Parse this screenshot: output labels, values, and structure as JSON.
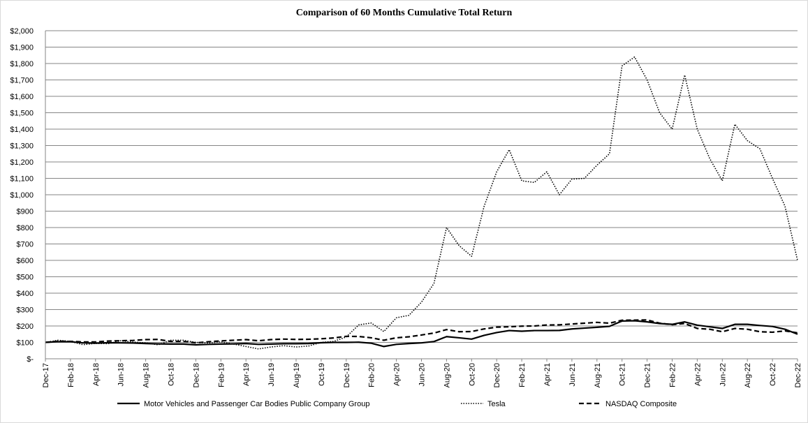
{
  "chart_data": {
    "type": "line",
    "title": "Comparison of 60 Months Cumulative Total Return",
    "xlabel": "",
    "ylabel": "",
    "ylim": [
      0,
      2000
    ],
    "y_ticks": [
      {
        "v": 0,
        "label": "$-"
      },
      {
        "v": 100,
        "label": "$100"
      },
      {
        "v": 200,
        "label": "$200"
      },
      {
        "v": 300,
        "label": "$300"
      },
      {
        "v": 400,
        "label": "$400"
      },
      {
        "v": 500,
        "label": "$500"
      },
      {
        "v": 600,
        "label": "$600"
      },
      {
        "v": 700,
        "label": "$700"
      },
      {
        "v": 800,
        "label": "$800"
      },
      {
        "v": 900,
        "label": "$900"
      },
      {
        "v": 1000,
        "label": "$1,000"
      },
      {
        "v": 1100,
        "label": "$1,100"
      },
      {
        "v": 1200,
        "label": "$1,200"
      },
      {
        "v": 1300,
        "label": "$1,300"
      },
      {
        "v": 1400,
        "label": "$1,400"
      },
      {
        "v": 1500,
        "label": "$1,500"
      },
      {
        "v": 1600,
        "label": "$1,600"
      },
      {
        "v": 1700,
        "label": "$1,700"
      },
      {
        "v": 1800,
        "label": "$1,800"
      },
      {
        "v": 1900,
        "label": "$1,900"
      },
      {
        "v": 2000,
        "label": "$2,000"
      }
    ],
    "x": [
      "Dec-17",
      "Jan-18",
      "Feb-18",
      "Mar-18",
      "Apr-18",
      "May-18",
      "Jun-18",
      "Jul-18",
      "Aug-18",
      "Sep-18",
      "Oct-18",
      "Nov-18",
      "Dec-18",
      "Jan-19",
      "Feb-19",
      "Mar-19",
      "Apr-19",
      "May-19",
      "Jun-19",
      "Jul-19",
      "Aug-19",
      "Sep-19",
      "Oct-19",
      "Nov-19",
      "Dec-19",
      "Jan-20",
      "Feb-20",
      "Mar-20",
      "Apr-20",
      "May-20",
      "Jun-20",
      "Jul-20",
      "Aug-20",
      "Sep-20",
      "Oct-20",
      "Nov-20",
      "Dec-20",
      "Jan-21",
      "Feb-21",
      "Mar-21",
      "Apr-21",
      "May-21",
      "Jun-21",
      "Jul-21",
      "Aug-21",
      "Sep-21",
      "Oct-21",
      "Nov-21",
      "Dec-21",
      "Jan-22",
      "Feb-22",
      "Mar-22",
      "Apr-22",
      "May-22",
      "Jun-22",
      "Jul-22",
      "Aug-22",
      "Sep-22",
      "Oct-22",
      "Nov-22",
      "Dec-22"
    ],
    "x_tick_labels": [
      "Dec-17",
      "Feb-18",
      "Apr-18",
      "Jun-18",
      "Aug-18",
      "Oct-18",
      "Dec-18",
      "Feb-19",
      "Apr-19",
      "Jun-19",
      "Aug-19",
      "Oct-19",
      "Dec-19",
      "Feb-20",
      "Apr-20",
      "Jun-20",
      "Aug-20",
      "Oct-20",
      "Dec-20",
      "Feb-21",
      "Apr-21",
      "Jun-21",
      "Aug-21",
      "Oct-21",
      "Dec-21",
      "Feb-22",
      "Apr-22",
      "Jun-22",
      "Aug-22",
      "Oct-22",
      "Dec-22"
    ],
    "grid": "horizontal",
    "legend_position": "bottom",
    "series": [
      {
        "name": "Motor Vehicles and Passenger Car Bodies Public Company Group",
        "style": "solid",
        "color": "#000000",
        "values": [
          100,
          104,
          104,
          97,
          95,
          98,
          97,
          96,
          93,
          91,
          90,
          90,
          85,
          88,
          90,
          91,
          93,
          88,
          90,
          92,
          92,
          93,
          98,
          100,
          100,
          101,
          95,
          75,
          88,
          93,
          97,
          105,
          135,
          128,
          120,
          143,
          160,
          172,
          168,
          172,
          172,
          173,
          182,
          187,
          192,
          198,
          230,
          232,
          225,
          215,
          210,
          225,
          205,
          195,
          185,
          210,
          210,
          203,
          197,
          180,
          150
        ]
      },
      {
        "name": "Tesla",
        "style": "dotted",
        "color": "#000000",
        "values": [
          100,
          113,
          106,
          86,
          94,
          92,
          110,
          102,
          97,
          85,
          113,
          113,
          100,
          96,
          103,
          90,
          75,
          60,
          72,
          80,
          72,
          78,
          100,
          106,
          133,
          207,
          218,
          166,
          250,
          265,
          345,
          460,
          800,
          690,
          625,
          930,
          1140,
          1275,
          1085,
          1075,
          1140,
          1000,
          1095,
          1100,
          1180,
          1250,
          1785,
          1840,
          1700,
          1500,
          1400,
          1730,
          1400,
          1220,
          1085,
          1430,
          1330,
          1280,
          1100,
          930,
          600
        ]
      },
      {
        "name": "NASDAQ Composite",
        "style": "dashed",
        "color": "#000000",
        "values": [
          100,
          107,
          106,
          103,
          103,
          108,
          110,
          112,
          117,
          118,
          106,
          106,
          97,
          104,
          109,
          113,
          117,
          110,
          117,
          120,
          118,
          119,
          122,
          127,
          137,
          136,
          128,
          113,
          128,
          134,
          145,
          157,
          178,
          165,
          166,
          182,
          193,
          195,
          199,
          200,
          206,
          207,
          212,
          217,
          222,
          217,
          235,
          236,
          237,
          217,
          208,
          215,
          185,
          180,
          165,
          185,
          180,
          165,
          162,
          170,
          158
        ]
      }
    ]
  }
}
